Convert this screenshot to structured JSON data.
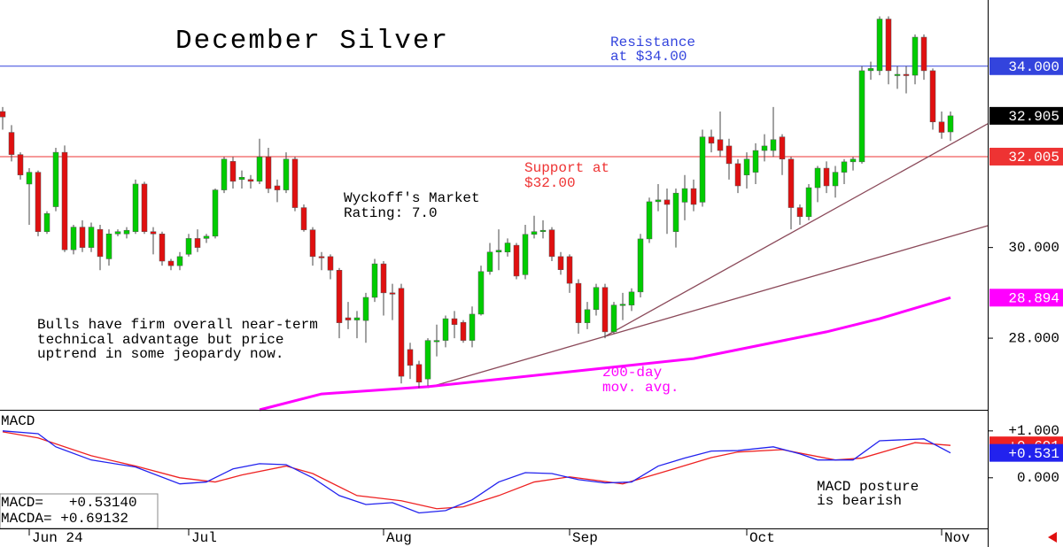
{
  "chart_data": {
    "type": "candlestick",
    "title": "December Silver",
    "categories": [
      null,
      null,
      null,
      "Jun 24",
      null,
      null,
      null,
      null,
      null,
      null,
      null,
      null,
      null,
      null,
      null,
      null,
      null,
      null,
      null,
      null,
      null,
      "Jul",
      null,
      null,
      null,
      null,
      null,
      null,
      null,
      null,
      null,
      null,
      null,
      null,
      null,
      null,
      null,
      null,
      null,
      null,
      null,
      null,
      null,
      "Aug",
      null,
      null,
      null,
      null,
      null,
      null,
      null,
      null,
      null,
      null,
      null,
      null,
      null,
      null,
      null,
      null,
      null,
      null,
      null,
      null,
      "Sep",
      null,
      null,
      null,
      null,
      null,
      null,
      null,
      null,
      null,
      null,
      null,
      null,
      null,
      null,
      null,
      null,
      null,
      null,
      null,
      "Oct",
      null,
      null,
      null,
      null,
      null,
      null,
      null,
      null,
      null,
      null,
      null,
      null,
      null,
      null,
      null,
      null,
      null,
      null,
      null,
      null,
      null,
      "Nov",
      null
    ],
    "open": [
      33.0,
      32.54,
      32.05,
      31.4,
      31.66,
      30.35,
      30.9,
      32.1,
      29.95,
      30.45,
      30.0,
      30.4,
      29.75,
      30.3,
      30.3,
      30.35,
      31.4,
      30.35,
      30.3,
      29.7,
      29.6,
      29.85,
      30.2,
      30.2,
      30.25,
      31.27,
      31.9,
      31.5,
      31.5,
      31.46,
      32.0,
      31.36,
      31.27,
      31.95,
      30.88,
      30.39,
      29.8,
      29.8,
      29.5,
      28.45,
      28.4,
      28.39,
      28.9,
      29.64,
      29.0,
      29.1,
      27.75,
      27.42,
      27.1,
      27.95,
      27.95,
      28.43,
      28.35,
      27.95,
      28.53,
      29.47,
      29.9,
      29.9,
      30.05,
      29.4,
      30.29,
      30.35,
      30.39,
      29.8,
      29.8,
      29.21,
      28.34,
      28.63,
      29.12,
      28.14,
      28.73,
      28.73,
      29.02,
      30.19,
      31.01,
      31.05,
      30.35,
      31.0,
      31.3,
      31.0,
      32.44,
      32.38,
      32.24,
      31.85,
      31.6,
      31.66,
      32.14,
      32.14,
      32.44,
      31.95,
      30.88,
      30.68,
      31.32,
      31.75,
      31.36,
      31.66,
      31.89,
      31.89,
      33.9,
      33.9,
      35.04,
      33.8,
      33.82,
      33.8,
      34.64,
      33.9,
      32.77,
      32.55
    ],
    "high": [
      33.1,
      32.7,
      32.1,
      31.75,
      31.7,
      30.8,
      32.2,
      32.25,
      30.5,
      30.6,
      30.55,
      30.5,
      30.4,
      30.4,
      30.45,
      31.5,
      31.45,
      30.45,
      30.35,
      29.75,
      29.9,
      30.3,
      30.4,
      30.3,
      31.3,
      32.0,
      32.0,
      31.7,
      31.6,
      32.4,
      32.2,
      31.5,
      32.1,
      32.0,
      30.95,
      30.45,
      29.9,
      29.85,
      29.55,
      28.8,
      28.6,
      29.0,
      29.75,
      29.7,
      29.2,
      29.2,
      27.9,
      27.5,
      28.0,
      28.3,
      28.5,
      28.6,
      28.4,
      28.7,
      29.6,
      30.1,
      30.4,
      30.2,
      30.1,
      30.5,
      30.7,
      30.6,
      30.45,
      29.9,
      29.85,
      29.3,
      28.8,
      29.2,
      29.2,
      28.8,
      29.0,
      29.1,
      30.3,
      31.1,
      31.4,
      31.3,
      31.3,
      31.6,
      31.5,
      32.6,
      32.6,
      33.0,
      32.4,
      31.95,
      32.1,
      32.3,
      32.5,
      33.1,
      32.5,
      32.0,
      30.95,
      31.4,
      31.8,
      31.9,
      31.8,
      31.95,
      32.0,
      34.0,
      34.1,
      35.1,
      35.1,
      34.0,
      34.0,
      34.7,
      34.7,
      33.95,
      33.0,
      33.0
    ],
    "low": [
      32.6,
      31.9,
      31.5,
      30.5,
      30.25,
      30.3,
      30.8,
      29.9,
      29.85,
      29.9,
      29.9,
      29.5,
      29.6,
      30.25,
      30.2,
      30.3,
      30.3,
      29.85,
      29.6,
      29.5,
      29.5,
      29.8,
      29.9,
      30.1,
      30.2,
      31.2,
      31.3,
      31.3,
      31.3,
      31.4,
      31.2,
      31.0,
      31.2,
      30.8,
      30.35,
      29.6,
      29.5,
      29.3,
      28.0,
      28.2,
      28.0,
      27.9,
      28.8,
      28.5,
      28.4,
      27.0,
      27.1,
      26.9,
      26.95,
      27.6,
      27.8,
      28.0,
      27.9,
      27.8,
      28.5,
      29.4,
      29.5,
      29.8,
      29.3,
      29.3,
      30.2,
      30.2,
      29.7,
      29.4,
      29.0,
      28.1,
      28.2,
      28.5,
      28.0,
      28.1,
      28.4,
      28.6,
      28.9,
      30.1,
      30.8,
      30.3,
      30.0,
      30.6,
      30.8,
      30.9,
      32.1,
      32.0,
      31.5,
      31.2,
      31.3,
      31.4,
      31.9,
      32.0,
      31.6,
      30.4,
      30.5,
      30.6,
      31.0,
      31.2,
      31.1,
      31.4,
      31.7,
      31.85,
      33.7,
      33.8,
      33.6,
      33.5,
      33.4,
      33.6,
      33.7,
      32.6,
      32.4,
      32.35
    ],
    "close": [
      32.88,
      32.05,
      31.6,
      31.66,
      30.35,
      30.75,
      32.1,
      29.95,
      30.45,
      30.0,
      30.45,
      29.8,
      30.3,
      30.35,
      30.38,
      31.4,
      30.35,
      30.3,
      29.7,
      29.6,
      29.8,
      30.2,
      30.0,
      30.25,
      31.27,
      31.95,
      31.46,
      31.55,
      31.46,
      32.0,
      31.3,
      31.27,
      31.95,
      30.88,
      30.39,
      29.8,
      29.78,
      29.5,
      28.34,
      28.4,
      28.45,
      28.9,
      29.64,
      29.0,
      28.98,
      27.16,
      27.4,
      27.03,
      27.95,
      27.95,
      28.43,
      28.3,
      27.95,
      28.53,
      29.47,
      29.9,
      29.94,
      30.1,
      29.37,
      30.29,
      30.35,
      30.38,
      29.8,
      29.51,
      29.21,
      28.34,
      28.63,
      29.12,
      28.14,
      28.73,
      28.75,
      29.02,
      30.19,
      31.01,
      31.05,
      30.95,
      31.2,
      31.3,
      30.95,
      32.44,
      32.3,
      32.14,
      31.85,
      31.36,
      31.95,
      32.14,
      32.24,
      32.38,
      31.95,
      30.88,
      30.68,
      31.32,
      31.75,
      31.36,
      31.66,
      31.89,
      31.95,
      33.9,
      33.95,
      35.04,
      33.9,
      33.82,
      33.8,
      34.64,
      33.9,
      32.77,
      32.54,
      32.905
    ],
    "up_color": "#00cc00",
    "down_color": "#e01010",
    "last_label": "32.905",
    "ylim": [
      26.42,
      35.46
    ],
    "yticks": [
      {
        "value": 28,
        "label": "28.000"
      },
      {
        "value": 30,
        "label": "30.000"
      }
    ],
    "levels": [
      {
        "value": 34,
        "label": "34.000",
        "color": "#3344dd",
        "note": [
          "Resistance",
          "at $34.00"
        ]
      },
      {
        "value": 32.005,
        "label": "32.005",
        "color": "#ee3333",
        "note": [
          "Support at",
          "$32.00"
        ]
      }
    ],
    "trendlines": [
      {
        "x": [
          48,
          111.2
        ],
        "values": [
          26.91,
          30.48
        ],
        "color": "#8b4a5a"
      },
      {
        "x": [
          68,
          111.2
        ],
        "values": [
          28.04,
          32.73
        ],
        "color": "#8b4a5a"
      }
    ],
    "moving_average": {
      "label": [
        "200-day",
        "mov. avg."
      ],
      "color": "#ff00ff",
      "x": [
        29,
        36,
        48,
        64,
        78,
        93,
        99,
        107
      ],
      "values": [
        26.42,
        26.77,
        26.93,
        27.26,
        27.55,
        28.14,
        28.43,
        28.894
      ],
      "end_label": "28.894"
    },
    "annotations": [
      [
        "Wyckoff's Market",
        "Rating: 7.0"
      ],
      [
        "Bulls have firm overall near-term",
        "technical advantage but price",
        "uptrend in some jeopardy now."
      ]
    ],
    "macd": {
      "title": "MACD",
      "ylim": [
        -1.08,
        1.45
      ],
      "yticks": [
        {
          "value": 1,
          "label": "+1.000"
        },
        {
          "value": 0,
          "label": "0.000"
        }
      ],
      "series": [
        {
          "color": "#ee2222",
          "x": [
            0,
            4,
            10,
            15,
            20,
            24,
            27,
            32,
            35,
            40,
            45,
            49,
            52,
            56,
            60,
            64,
            70,
            74,
            80,
            83,
            88,
            94,
            97,
            103,
            107
          ],
          "values": [
            0.98,
            0.85,
            0.47,
            0.25,
            0.0,
            -0.09,
            0.06,
            0.25,
            0.09,
            -0.38,
            -0.49,
            -0.66,
            -0.62,
            -0.38,
            -0.09,
            0.02,
            -0.13,
            0.09,
            0.43,
            0.55,
            0.6,
            0.38,
            0.42,
            0.75,
            0.69132
          ],
          "end_label": "+0.691"
        },
        {
          "color": "#2222ee",
          "x": [
            0,
            4,
            6,
            10,
            15,
            20,
            23,
            26,
            29,
            32,
            35,
            38,
            41,
            44,
            47,
            50,
            53,
            56,
            59,
            62,
            65,
            68,
            71,
            74,
            77,
            80,
            83,
            87,
            90,
            92,
            96,
            99,
            104,
            107
          ],
          "values": [
            1.0,
            0.94,
            0.66,
            0.38,
            0.23,
            -0.13,
            -0.09,
            0.19,
            0.3,
            0.28,
            0.0,
            -0.38,
            -0.57,
            -0.53,
            -0.75,
            -0.7,
            -0.47,
            -0.09,
            0.11,
            0.09,
            -0.04,
            -0.11,
            -0.09,
            0.25,
            0.42,
            0.57,
            0.58,
            0.66,
            0.51,
            0.38,
            0.38,
            0.79,
            0.83,
            0.5314
          ],
          "end_label": "+0.531"
        }
      ],
      "readouts": [
        "MACD=   +0.53140",
        "MACDA= +0.69132"
      ],
      "note": [
        "MACD posture",
        "is bearish"
      ]
    }
  }
}
